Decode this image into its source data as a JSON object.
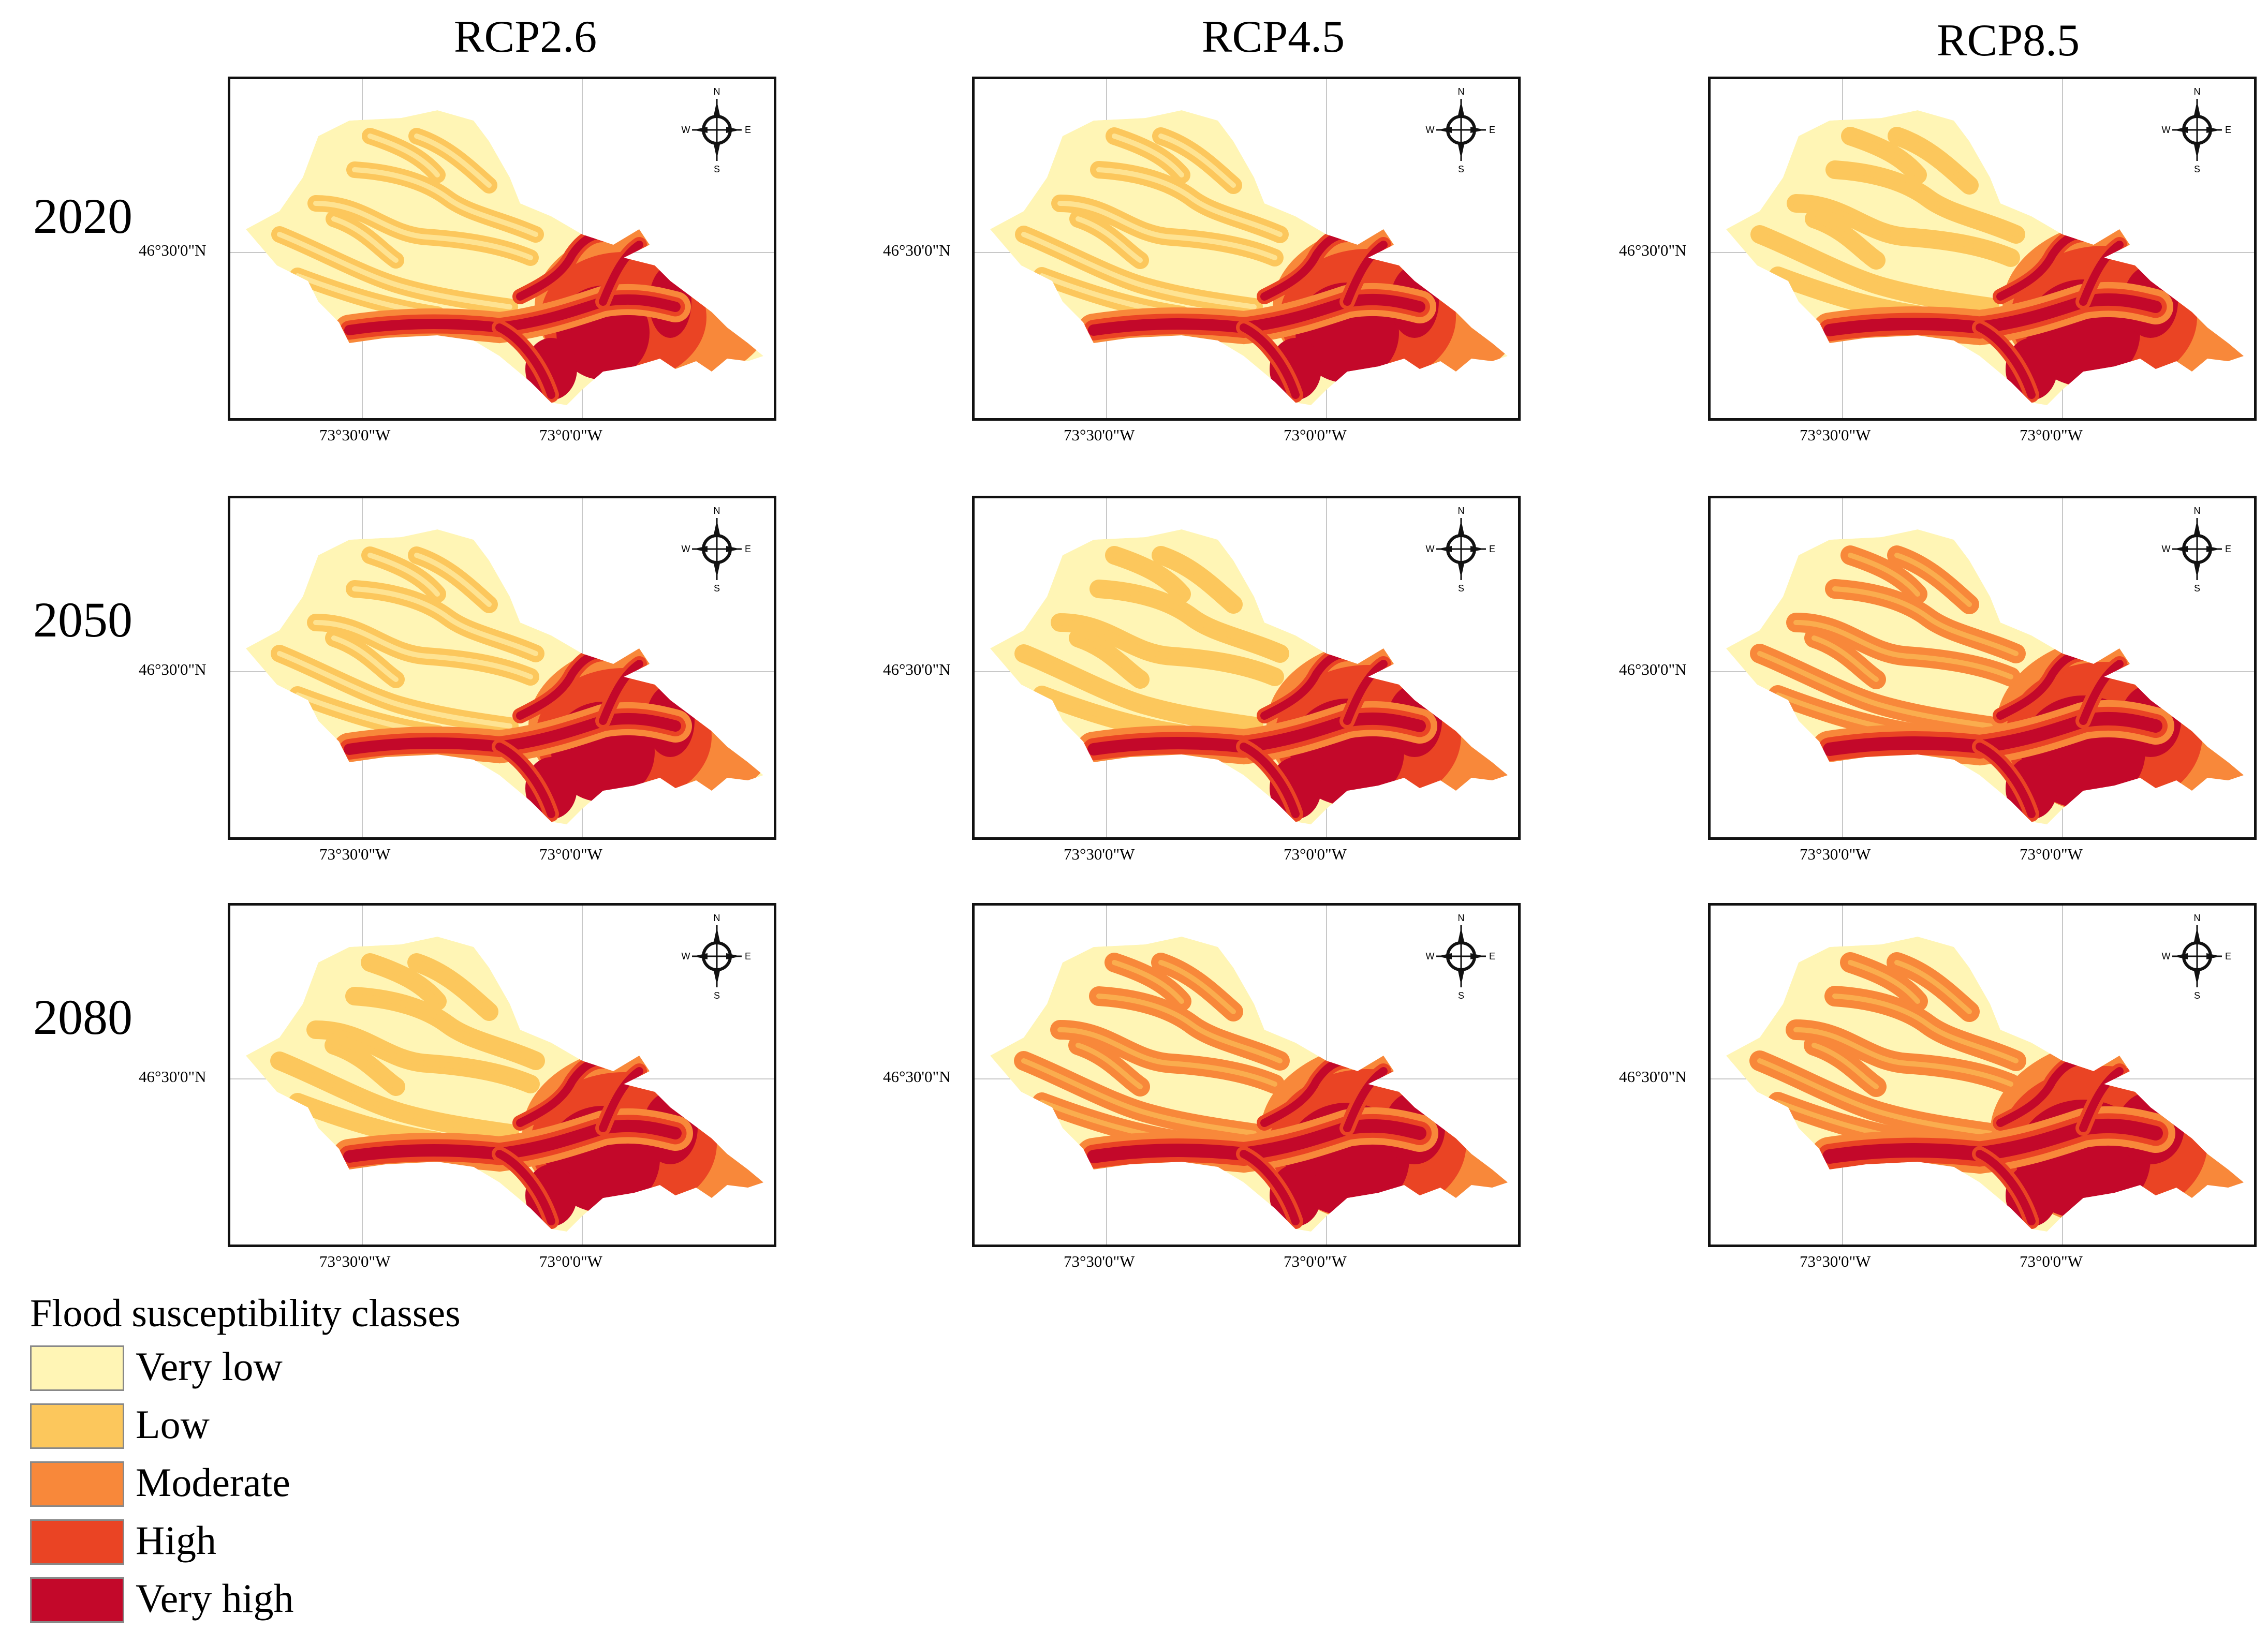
{
  "columns": [
    "RCP2.6",
    "RCP4.5",
    "RCP8.5"
  ],
  "rows": [
    "2020",
    "2050",
    "2080"
  ],
  "lat_label": "46°30'0\"N",
  "lon_labels": [
    "73°30'0\"W",
    "73°0'0\"W"
  ],
  "compass": {
    "n": "N",
    "s": "S",
    "e": "E",
    "w": "W"
  },
  "legend": {
    "title": "Flood susceptibility classes",
    "items": [
      {
        "label": "Very low",
        "color": "#fff5b5"
      },
      {
        "label": "Low",
        "color": "#fcc75c"
      },
      {
        "label": "Moderate",
        "color": "#f8883a"
      },
      {
        "label": "High",
        "color": "#ea4424"
      },
      {
        "label": "Very high",
        "color": "#c3082a"
      }
    ]
  },
  "panel_levels": [
    [
      1,
      2,
      3
    ],
    [
      2,
      3,
      4
    ],
    [
      3,
      4,
      5
    ]
  ]
}
